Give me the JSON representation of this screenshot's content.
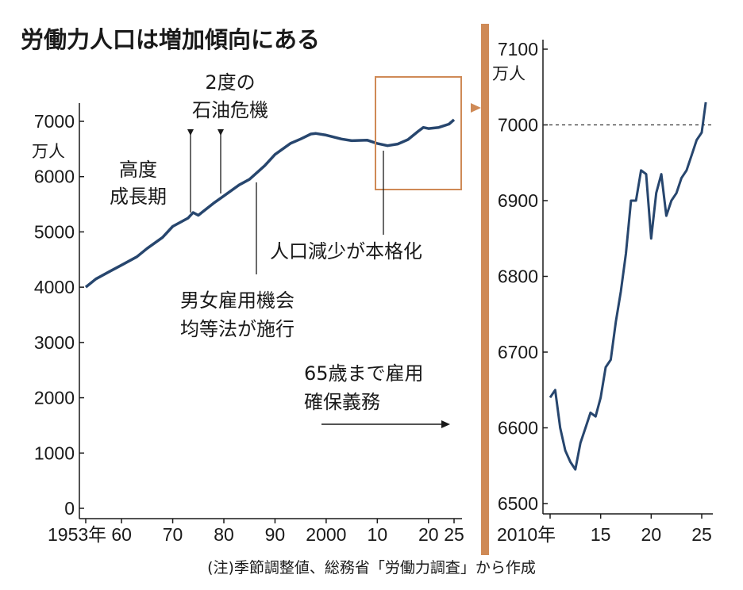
{
  "chart_data": [
    {
      "type": "line",
      "title": "労働力人口は増加傾向にある",
      "ylabel": "万人",
      "ylim": [
        0,
        7000
      ],
      "yticks": [
        "7000",
        "6000",
        "5000",
        "4000",
        "3000",
        "2000",
        "1000",
        "0"
      ],
      "xticks": [
        "1953年",
        "60",
        "70",
        "80",
        "90",
        "2000",
        "10",
        "20",
        "25"
      ],
      "x": [
        1953,
        1955,
        1958,
        1960,
        1963,
        1965,
        1968,
        1970,
        1973,
        1974,
        1975,
        1978,
        1980,
        1983,
        1985,
        1988,
        1990,
        1993,
        1995,
        1997,
        1998,
        2000,
        2003,
        2005,
        2008,
        2010,
        2012,
        2014,
        2016,
        2018,
        2019,
        2020,
        2022,
        2024,
        2025
      ],
      "series": [
        {
          "values": [
            4000,
            4150,
            4300,
            4400,
            4550,
            4700,
            4900,
            5100,
            5250,
            5350,
            5300,
            5520,
            5650,
            5850,
            5950,
            6200,
            6400,
            6600,
            6680,
            6770,
            6780,
            6750,
            6680,
            6650,
            6660,
            6600,
            6560,
            6590,
            6670,
            6820,
            6890,
            6870,
            6890,
            6950,
            7030
          ],
          "color": "#27466e"
        }
      ],
      "highlight_color": "#cf8a56",
      "annotations": [
        {
          "lines": [
            "高度",
            "成長期"
          ]
        },
        {
          "lines": [
            "2度の",
            "石油危機"
          ]
        },
        {
          "lines": [
            "男女雇用機会",
            "均等法が施行"
          ]
        },
        {
          "lines": [
            "人口減少が本格化"
          ]
        },
        {
          "lines": [
            "65歳まで雇用",
            "確保義務"
          ]
        }
      ]
    },
    {
      "type": "line",
      "ylabel": "万人",
      "ylim": [
        6500,
        7100
      ],
      "yticks": [
        "7100",
        "7000",
        "6900",
        "6800",
        "6700",
        "6600",
        "6500"
      ],
      "xticks": [
        "2010年",
        "15",
        "20",
        "25"
      ],
      "reference_line": 7000,
      "x": [
        2010.0,
        2010.5,
        2011.0,
        2011.5,
        2012.0,
        2012.5,
        2013.0,
        2013.5,
        2014.0,
        2014.5,
        2015.0,
        2015.5,
        2016.0,
        2016.5,
        2017.0,
        2017.5,
        2018.0,
        2018.5,
        2019.0,
        2019.5,
        2020.0,
        2020.5,
        2021.0,
        2021.5,
        2022.0,
        2022.5,
        2023.0,
        2023.5,
        2024.0,
        2024.5,
        2025.0,
        2025.4
      ],
      "series": [
        {
          "values": [
            6640,
            6650,
            6600,
            6570,
            6555,
            6545,
            6580,
            6600,
            6620,
            6615,
            6640,
            6680,
            6690,
            6740,
            6780,
            6830,
            6900,
            6900,
            6940,
            6935,
            6850,
            6910,
            6935,
            6880,
            6900,
            6910,
            6930,
            6940,
            6960,
            6980,
            6990,
            7030
          ],
          "color": "#27466e"
        }
      ]
    }
  ],
  "source_note": "(注)季節調整値、総務省「労働力調査」から作成"
}
